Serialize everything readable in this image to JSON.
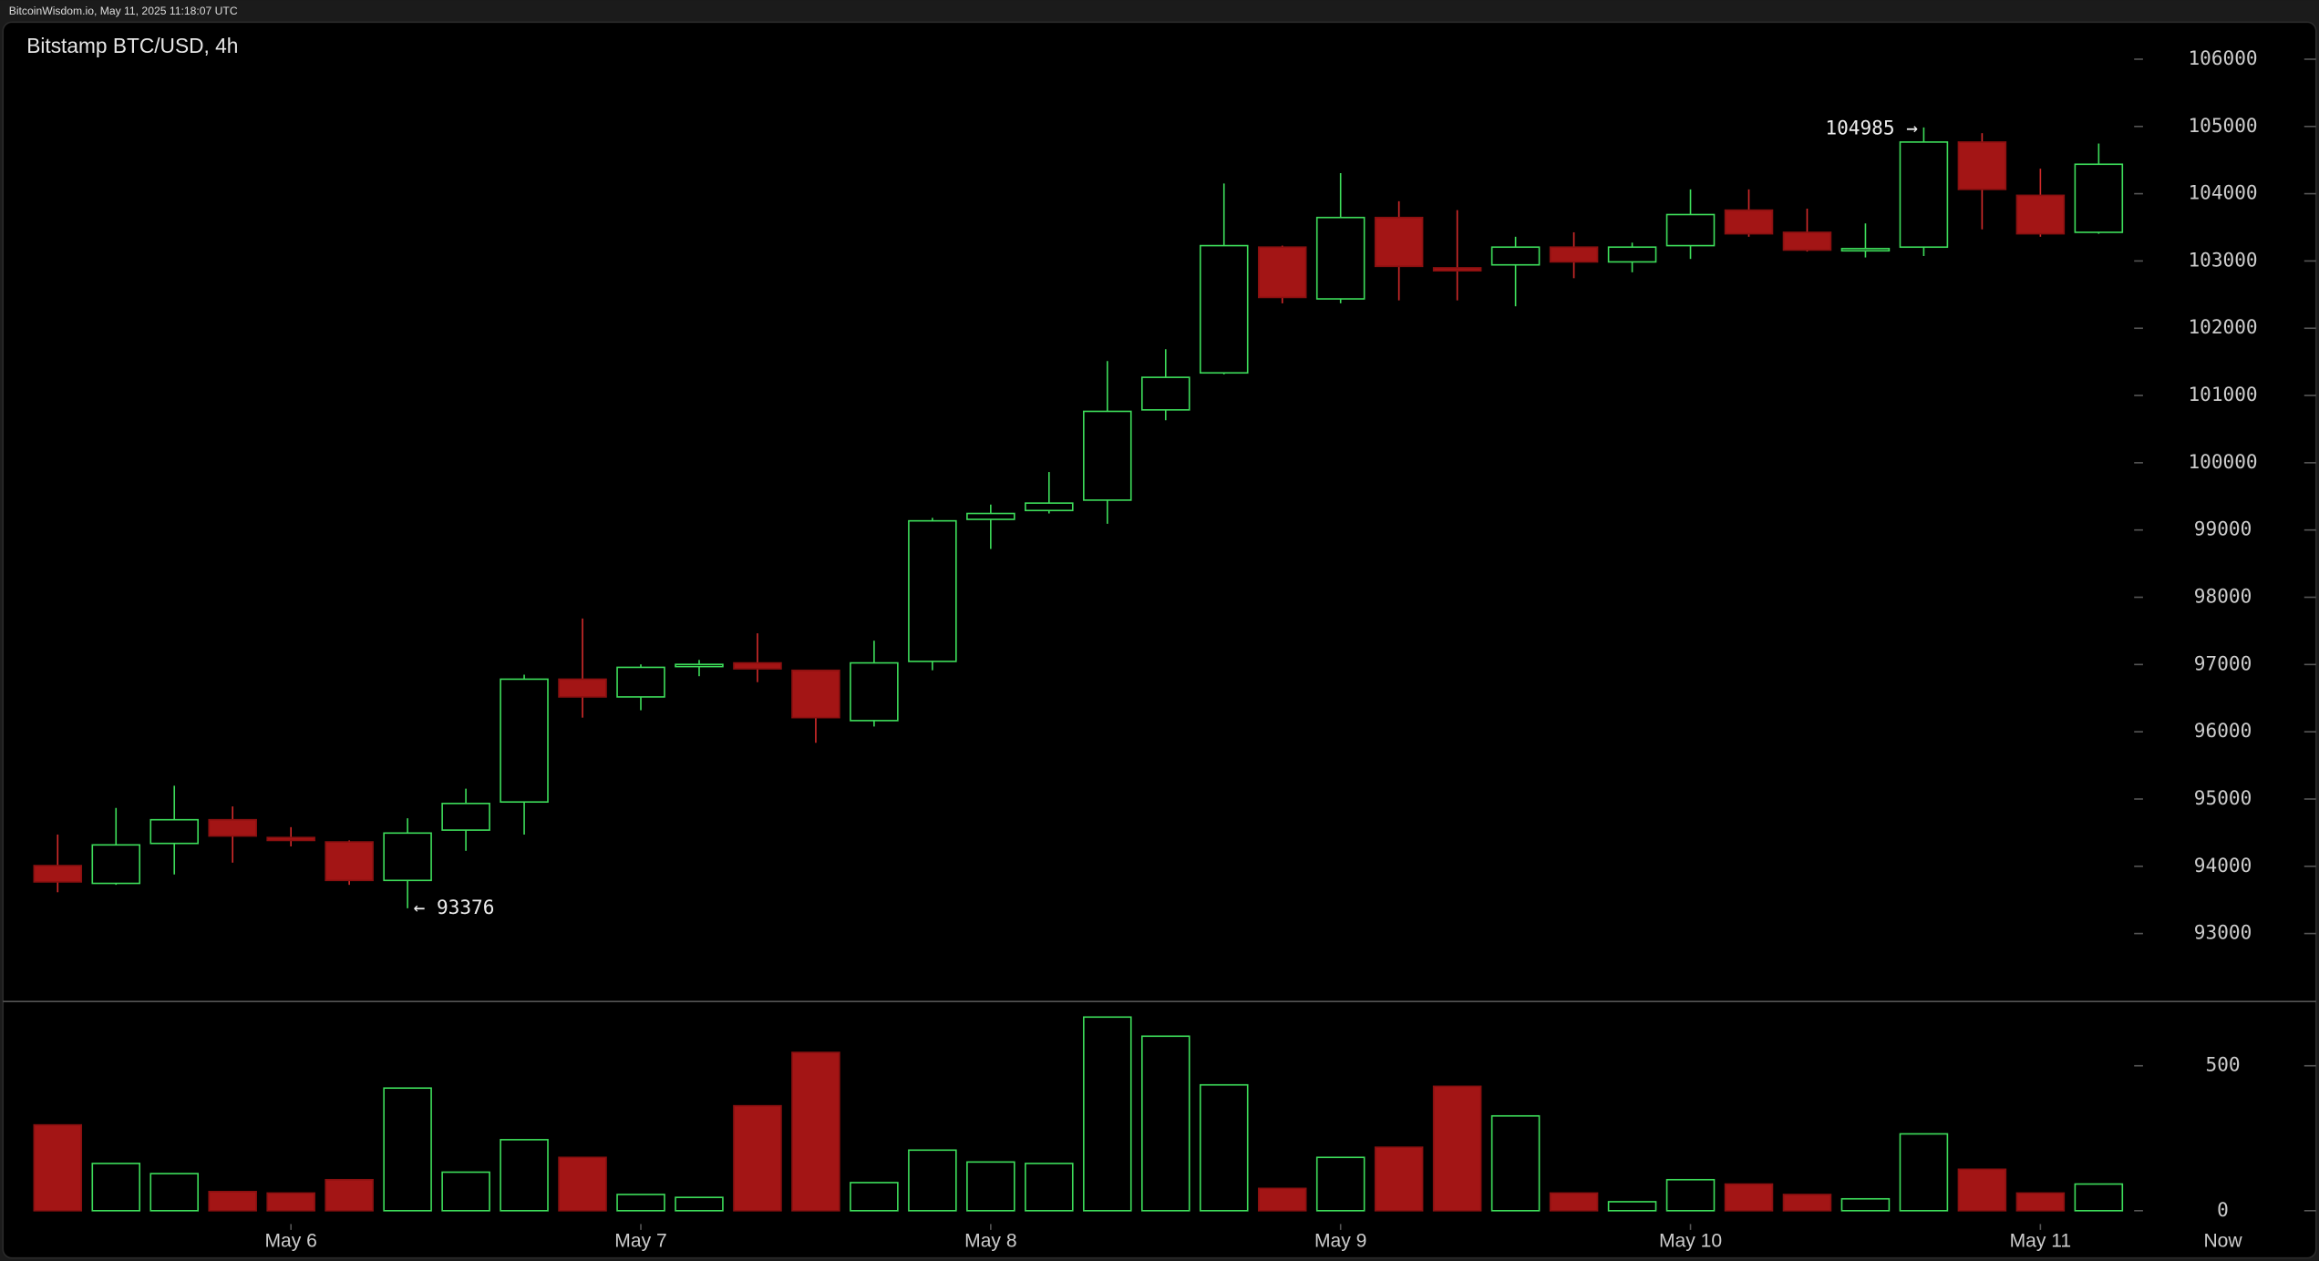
{
  "header": {
    "source": "BitcoinWisdom.io, May 11, 2025 11:18:07 UTC"
  },
  "chart_data": {
    "type": "candlestick",
    "title": "Bitstamp BTC/USD, 4h",
    "categories": [
      null,
      null,
      null,
      null,
      "May 6",
      null,
      null,
      null,
      null,
      null,
      "May 7",
      null,
      null,
      null,
      null,
      null,
      "May 8",
      null,
      null,
      null,
      null,
      null,
      "May 9",
      null,
      null,
      null,
      null,
      null,
      "May 10",
      null,
      null,
      null,
      null,
      null,
      "May 11",
      null
    ],
    "x_end_label": "Now",
    "open": [
      94010,
      93746,
      94340,
      94692,
      94428,
      94362,
      93790,
      94538,
      94956,
      96782,
      96518,
      96980,
      97024,
      96914,
      96166,
      97046,
      99158,
      99290,
      99444,
      100786,
      101336,
      103206,
      102436,
      103646,
      102898,
      102942,
      103206,
      102986,
      103228,
      103756,
      103426,
      103162,
      103206,
      104768,
      103976,
      103426
    ],
    "high": [
      94472,
      94868,
      95198,
      94890,
      94582,
      94384,
      94714,
      95154,
      96848,
      97684,
      97002,
      97068,
      97464,
      96914,
      97354,
      99180,
      99378,
      99862,
      101512,
      101688,
      104152,
      103228,
      104306,
      103888,
      103756,
      103360,
      103426,
      103272,
      104064,
      104064,
      103778,
      103558,
      104985,
      104900,
      104372,
      104746
    ],
    "low": [
      93614,
      93724,
      93878,
      94054,
      94296,
      93724,
      93376,
      94230,
      94472,
      96210,
      96320,
      96826,
      96738,
      95836,
      96078,
      96914,
      98718,
      99246,
      99092,
      100632,
      101314,
      102370,
      102370,
      102414,
      102414,
      102326,
      102744,
      102832,
      103030,
      103360,
      103140,
      103052,
      103074,
      103470,
      103360,
      103404
    ],
    "close": [
      93768,
      94318,
      94692,
      94450,
      94384,
      93790,
      94494,
      94934,
      96782,
      96518,
      96958,
      97002,
      96936,
      96210,
      97024,
      99136,
      99246,
      99400,
      100764,
      101270,
      103228,
      102458,
      103646,
      102920,
      102854,
      103206,
      102986,
      103206,
      103690,
      103404,
      103162,
      103184,
      104768,
      104064,
      103404,
      104438
    ],
    "volume": [
      296,
      163,
      128,
      66,
      61,
      107,
      423,
      133,
      245,
      184,
      56,
      46,
      362,
      546,
      97,
      209,
      168,
      163,
      668,
      602,
      434,
      77,
      184,
      219,
      429,
      327,
      61,
      31,
      107,
      92,
      56,
      41,
      265,
      143,
      61,
      92
    ],
    "up_color": "#3ddc5a",
    "down_color": "#a31515",
    "ylim": [
      92000,
      106550
    ],
    "yticks": [
      93000,
      94000,
      95000,
      96000,
      97000,
      98000,
      99000,
      100000,
      101000,
      102000,
      103000,
      104000,
      105000,
      106000
    ],
    "volume_ylim": [
      0,
      719
    ],
    "volume_yticks": [
      0,
      500
    ],
    "annotations": [
      {
        "text": "104985 →",
        "value": 104985,
        "index": 32,
        "side": "left"
      },
      {
        "text": "← 93376",
        "value": 93376,
        "index": 6,
        "side": "right"
      }
    ]
  }
}
